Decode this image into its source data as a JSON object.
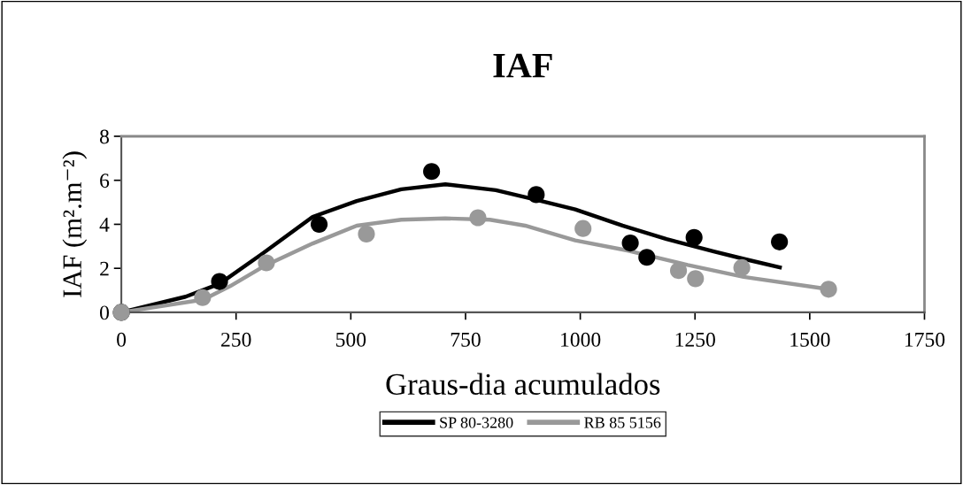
{
  "chart_data": {
    "type": "line",
    "title": "IAF",
    "xlabel": "Graus-dia acumulados",
    "ylabel": "IAF (m².m⁻²)",
    "xlim": [
      0,
      1750
    ],
    "xticks": [
      0,
      250,
      500,
      750,
      1000,
      1250,
      1500,
      1750
    ],
    "ylim": [
      0,
      8
    ],
    "yticks": [
      0,
      2,
      4,
      6,
      8
    ],
    "grid": false,
    "legend": "bottom",
    "series": [
      {
        "name": "SP 80-3280",
        "color": "#000000",
        "marker": "none",
        "x": [
          0,
          140,
          214,
          307,
          417,
          513,
          610,
          706,
          816,
          905,
          989,
          1092,
          1188,
          1291,
          1362,
          1439
        ],
        "values": [
          0,
          0.71,
          1.3,
          2.66,
          4.34,
          5.06,
          5.59,
          5.82,
          5.55,
          5.11,
          4.68,
          3.94,
          3.33,
          2.77,
          2.4,
          2.02
        ]
      },
      {
        "name": "RB 85 5156",
        "color": "#999999",
        "marker": "none",
        "x": [
          0,
          179,
          237,
          314,
          417,
          513,
          610,
          706,
          803,
          880,
          989,
          1105,
          1234,
          1356,
          1541
        ],
        "values": [
          0,
          0.58,
          1.19,
          2.13,
          3.13,
          3.94,
          4.21,
          4.27,
          4.21,
          3.94,
          3.27,
          2.8,
          2.15,
          1.61,
          1.05
        ]
      },
      {
        "type": "scatter",
        "color": "#000000",
        "marker": "circle",
        "x": [
          0,
          214,
          431,
          676,
          904,
          1109,
          1145,
          1248,
          1434
        ],
        "values": [
          0,
          1.4,
          4.0,
          6.4,
          5.35,
          3.15,
          2.5,
          3.4,
          3.2
        ]
      },
      {
        "type": "scatter",
        "color": "#999999",
        "marker": "circle",
        "x": [
          0,
          177,
          316,
          534,
          777,
          1006,
          1214,
          1251,
          1352,
          1541
        ],
        "values": [
          0,
          0.67,
          2.25,
          3.56,
          4.3,
          3.81,
          1.9,
          1.53,
          2.03,
          1.05
        ]
      }
    ]
  }
}
